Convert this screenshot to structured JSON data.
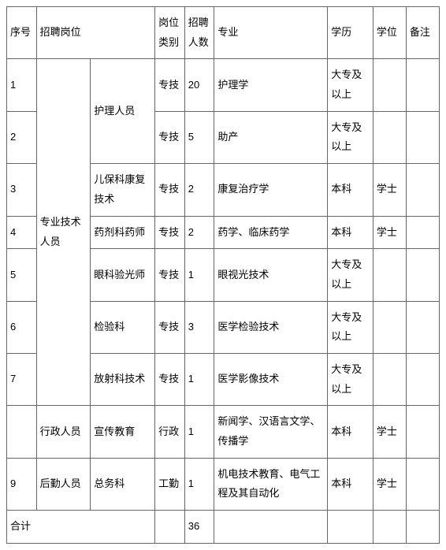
{
  "columns": {
    "idx": "序号",
    "position": "招聘岗位",
    "category": "岗位类别",
    "count": "招聘人数",
    "major": "专业",
    "education": "学历",
    "degree": "学位",
    "note": "备注"
  },
  "groups": {
    "professional": "专业技术人员",
    "admin": "行政人员",
    "logistics": "后勤人员"
  },
  "subgroups": {
    "nursing": "护理人员",
    "child_rehab": "儿保科康复技术",
    "pharmacy": "药剂科药师",
    "optometry": "眼科验光师",
    "lab": "检验科",
    "radiology": "放射科技术",
    "publicity": "宣传教育",
    "general": "总务科"
  },
  "rows": {
    "r1": {
      "idx": "1",
      "cat": "专技",
      "cnt": "20",
      "major": "护理学",
      "edu": "大专及以上",
      "deg": "",
      "note": ""
    },
    "r2": {
      "idx": "2",
      "cat": "专技",
      "cnt": "5",
      "major": "助产",
      "edu": "大专及以上",
      "deg": "",
      "note": ""
    },
    "r3": {
      "idx": "3",
      "cat": "专技",
      "cnt": "2",
      "major": "康复治疗学",
      "edu": "本科",
      "deg": "学士",
      "note": ""
    },
    "r4": {
      "idx": "4",
      "cat": "专技",
      "cnt": "2",
      "major": "药学、临床药学",
      "edu": "本科",
      "deg": "学士",
      "note": ""
    },
    "r5": {
      "idx": "5",
      "cat": "专技",
      "cnt": "1",
      "major": "眼视光技术",
      "edu": "大专及以上",
      "deg": "",
      "note": ""
    },
    "r6": {
      "idx": "6",
      "cat": "专技",
      "cnt": "3",
      "major": "医学检验技术",
      "edu": "大专及以上",
      "deg": "",
      "note": ""
    },
    "r7": {
      "idx": "7",
      "cat": "专技",
      "cnt": "1",
      "major": "医学影像技术",
      "edu": "大专及以上",
      "deg": "",
      "note": ""
    },
    "r8": {
      "idx": "",
      "cat": "行政",
      "cnt": "1",
      "major": "新闻学、汉语言文学、传播学",
      "edu": "本科",
      "deg": "学士",
      "note": ""
    },
    "r9": {
      "idx": "9",
      "cat": "工勤",
      "cnt": "1",
      "major": "机电技术教育、电气工程及其自动化",
      "edu": "本科",
      "deg": "学士",
      "note": ""
    }
  },
  "total": {
    "label": "合计",
    "count": "36"
  }
}
